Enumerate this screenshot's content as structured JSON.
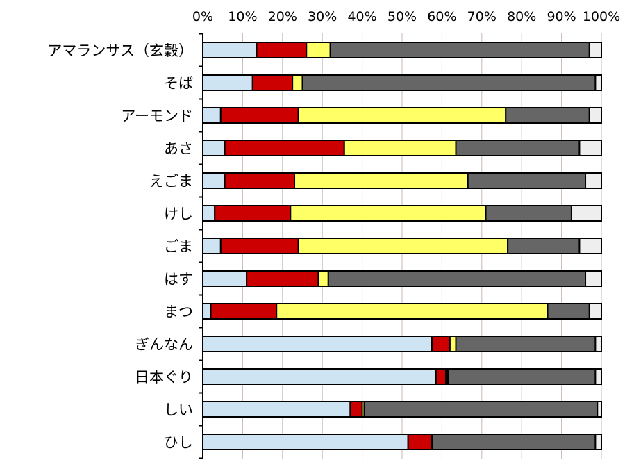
{
  "chart_data": {
    "type": "bar",
    "orientation": "horizontal",
    "stacked": "percent",
    "title": "",
    "xlabel": "",
    "ylabel": "",
    "xlim": [
      0,
      100
    ],
    "x_ticks": [
      "0%",
      "10%",
      "20%",
      "30%",
      "40%",
      "50%",
      "60%",
      "70%",
      "80%",
      "90%",
      "100%"
    ],
    "x_tick_values": [
      0,
      10,
      20,
      30,
      40,
      50,
      60,
      70,
      80,
      90,
      100
    ],
    "grid": true,
    "legend": "none",
    "categories": [
      "アマランサス（玄穀）",
      "そば",
      "アーモンド",
      "あさ",
      "えごま",
      "けし",
      "ごま",
      "はす",
      "まつ",
      "ぎんなん",
      "日本ぐり",
      "しい",
      "ひし"
    ],
    "series": [
      {
        "name": "series-1",
        "color": "#cfe4f3",
        "values": [
          13.5,
          12.5,
          4.5,
          5.5,
          5.5,
          3,
          4.5,
          11,
          2,
          57.5,
          58.5,
          37,
          51.5
        ]
      },
      {
        "name": "series-2",
        "color": "#cc0000",
        "values": [
          12.5,
          10,
          19.5,
          30,
          17.5,
          19,
          19.5,
          18,
          16.5,
          4.5,
          2.5,
          3,
          6
        ]
      },
      {
        "name": "series-3",
        "color": "#ffff66",
        "values": [
          6,
          2.5,
          52,
          28,
          43.5,
          49,
          52.5,
          2.5,
          68,
          1.5,
          0.5,
          0.5,
          0
        ]
      },
      {
        "name": "series-4",
        "color": "#666666",
        "values": [
          65,
          73.5,
          21,
          31,
          29.5,
          21.5,
          18,
          64.5,
          10.5,
          35,
          37,
          58.5,
          41
        ]
      },
      {
        "name": "series-5",
        "color": "#eeeeee",
        "values": [
          3,
          1.5,
          3,
          5.5,
          4,
          7.5,
          5.5,
          4,
          3,
          1.5,
          1.5,
          1,
          1.5
        ]
      }
    ]
  }
}
